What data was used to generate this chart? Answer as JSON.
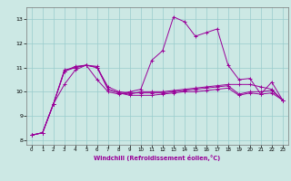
{
  "xlabel": "Windchill (Refroidissement éolien,°C)",
  "bg_color": "#cce8e4",
  "line_color": "#990099",
  "grid_color": "#99cccc",
  "xlim": [
    -0.5,
    23.5
  ],
  "ylim": [
    7.8,
    13.5
  ],
  "yticks": [
    8,
    9,
    10,
    11,
    12,
    13
  ],
  "xticks": [
    0,
    1,
    2,
    3,
    4,
    5,
    6,
    7,
    8,
    9,
    10,
    11,
    12,
    13,
    14,
    15,
    16,
    17,
    18,
    19,
    20,
    21,
    22,
    23
  ],
  "series": [
    [
      8.2,
      8.3,
      9.5,
      10.9,
      11.0,
      11.1,
      10.5,
      10.0,
      9.9,
      10.0,
      10.1,
      11.3,
      11.7,
      13.1,
      12.9,
      12.3,
      12.45,
      12.6,
      11.1,
      10.5,
      10.55,
      9.9,
      10.4,
      9.65
    ],
    [
      8.2,
      8.3,
      9.5,
      10.85,
      11.0,
      11.1,
      11.0,
      10.1,
      9.95,
      9.9,
      10.0,
      10.0,
      10.0,
      10.05,
      10.1,
      10.15,
      10.2,
      10.25,
      10.3,
      10.3,
      10.3,
      10.2,
      10.1,
      9.65
    ],
    [
      8.2,
      8.3,
      9.5,
      10.3,
      10.9,
      11.1,
      11.0,
      10.2,
      10.0,
      9.95,
      9.95,
      9.95,
      9.95,
      10.0,
      10.05,
      10.1,
      10.15,
      10.2,
      10.25,
      9.9,
      10.0,
      10.0,
      10.05,
      9.65
    ],
    [
      8.2,
      8.3,
      9.5,
      10.85,
      11.05,
      11.1,
      11.05,
      10.1,
      9.95,
      9.85,
      9.85,
      9.85,
      9.9,
      9.95,
      10.0,
      10.0,
      10.05,
      10.1,
      10.15,
      9.85,
      9.95,
      9.9,
      9.95,
      9.65
    ]
  ]
}
